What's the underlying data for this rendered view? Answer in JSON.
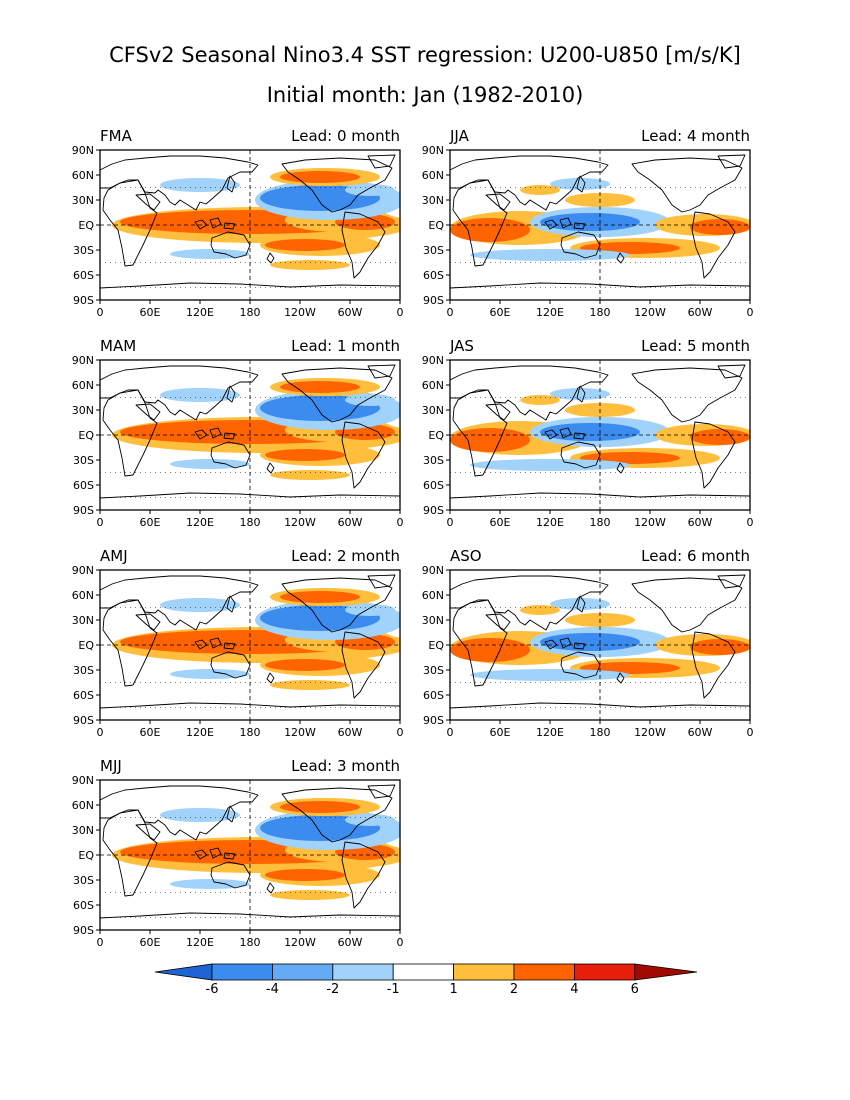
{
  "title": "CFSv2 Seasonal Nino3.4 SST regression: U200-U850 [m/s/K]",
  "subtitle": "Initial month: Jan (1982-2010)",
  "lat_labels": [
    "90N",
    "60N",
    "30N",
    "EQ",
    "30S",
    "60S",
    "90S"
  ],
  "lon_labels": [
    "0",
    "60E",
    "120E",
    "180",
    "120W",
    "60W",
    "0"
  ],
  "panels": [
    {
      "season": "FMA",
      "lead": "Lead: 0 month"
    },
    {
      "season": "MAM",
      "lead": "Lead: 1 month"
    },
    {
      "season": "AMJ",
      "lead": "Lead: 2 month"
    },
    {
      "season": "MJJ",
      "lead": "Lead: 3 month"
    },
    {
      "season": "JJA",
      "lead": "Lead: 4 month"
    },
    {
      "season": "JAS",
      "lead": "Lead: 5 month"
    },
    {
      "season": "ASO",
      "lead": "Lead: 6 month"
    }
  ],
  "colorbar": {
    "labels": [
      "-6",
      "-4",
      "-2",
      "-1",
      "1",
      "2",
      "4",
      "6"
    ],
    "colors": [
      "#1e64d2",
      "#3c8cf0",
      "#64aaf5",
      "#a0d2fa",
      "#ffffff",
      "#ffbe3c",
      "#ff6400",
      "#e61e0a",
      "#a00a00"
    ]
  },
  "colors": {
    "neg_strong": "#3c8cf0",
    "neg_mid": "#64aaf5",
    "neg_weak": "#a0d2fa",
    "pos_weak": "#ffbe3c",
    "pos_mid": "#ff6400",
    "pos_strong": "#e61e0a",
    "coast": "#000000"
  }
}
